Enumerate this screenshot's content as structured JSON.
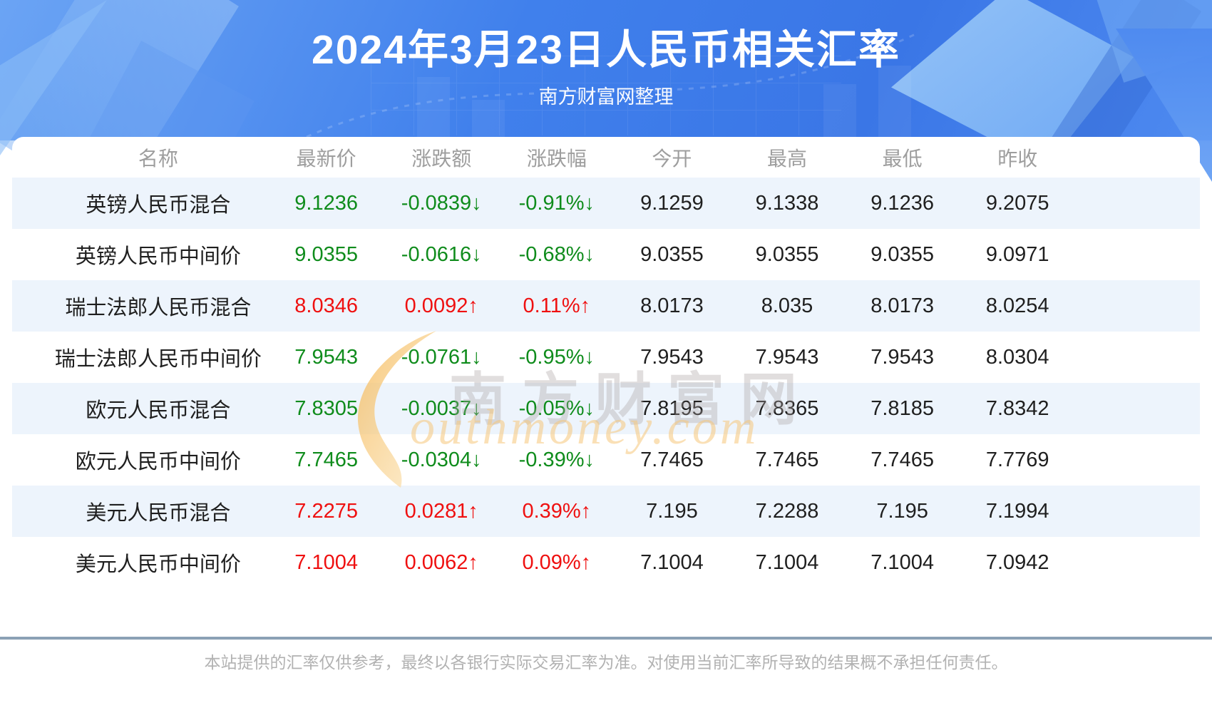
{
  "banner": {
    "title": "2024年3月23日人民币相关汇率",
    "subtitle": "南方财富网整理"
  },
  "table": {
    "headers": [
      "名称",
      "最新价",
      "涨跌额",
      "涨跌幅",
      "今开",
      "最高",
      "最低",
      "昨收"
    ],
    "rows": [
      {
        "name": "英镑人民币混合",
        "last": "9.1236",
        "change": "-0.0839↓",
        "pct": "-0.91%↓",
        "open": "9.1259",
        "high": "9.1338",
        "low": "9.1236",
        "prev": "9.2075",
        "dir": "down"
      },
      {
        "name": "英镑人民币中间价",
        "last": "9.0355",
        "change": "-0.0616↓",
        "pct": "-0.68%↓",
        "open": "9.0355",
        "high": "9.0355",
        "low": "9.0355",
        "prev": "9.0971",
        "dir": "down"
      },
      {
        "name": "瑞士法郎人民币混合",
        "last": "8.0346",
        "change": "0.0092↑",
        "pct": "0.11%↑",
        "open": "8.0173",
        "high": "8.035",
        "low": "8.0173",
        "prev": "8.0254",
        "dir": "up"
      },
      {
        "name": "瑞士法郎人民币中间价",
        "last": "7.9543",
        "change": "-0.0761↓",
        "pct": "-0.95%↓",
        "open": "7.9543",
        "high": "7.9543",
        "low": "7.9543",
        "prev": "8.0304",
        "dir": "down"
      },
      {
        "name": "欧元人民币混合",
        "last": "7.8305",
        "change": "-0.0037↓",
        "pct": "-0.05%↓",
        "open": "7.8195",
        "high": "7.8365",
        "low": "7.8185",
        "prev": "7.8342",
        "dir": "down"
      },
      {
        "name": "欧元人民币中间价",
        "last": "7.7465",
        "change": "-0.0304↓",
        "pct": "-0.39%↓",
        "open": "7.7465",
        "high": "7.7465",
        "low": "7.7465",
        "prev": "7.7769",
        "dir": "down"
      },
      {
        "name": "美元人民币混合",
        "last": "7.2275",
        "change": "0.0281↑",
        "pct": "0.39%↑",
        "open": "7.195",
        "high": "7.2288",
        "low": "7.195",
        "prev": "7.1994",
        "dir": "up"
      },
      {
        "name": "美元人民币中间价",
        "last": "7.1004",
        "change": "0.0062↑",
        "pct": "0.09%↑",
        "open": "7.1004",
        "high": "7.1004",
        "low": "7.1004",
        "prev": "7.0942",
        "dir": "up"
      }
    ]
  },
  "watermark": {
    "brand_cn": "南方财富网",
    "brand_en": "outhmoney.com"
  },
  "footer": {
    "disclaimer": "本站提供的汇率仅供参考，最终以各银行实际交易汇率为准。对使用当前汇率所导致的结果概不承担任何责任。"
  },
  "colors": {
    "up": "#ef1010",
    "down": "#0f8c1c",
    "stripe": "#edf4fc",
    "divider": "#8ba1b5",
    "header_text": "#9e9e9e",
    "body_text": "#1f1f1f",
    "footer_text": "#b2b2b2",
    "banner_blue": "#4080ec"
  },
  "chart_data": {
    "type": "table",
    "title": "2024年3月23日人民币相关汇率",
    "subtitle": "南方财富网整理",
    "columns": [
      "名称",
      "最新价",
      "涨跌额",
      "涨跌幅",
      "今开",
      "最高",
      "最低",
      "昨收"
    ],
    "rows": [
      [
        "英镑人民币混合",
        9.1236,
        -0.0839,
        "-0.91%",
        9.1259,
        9.1338,
        9.1236,
        9.2075
      ],
      [
        "英镑人民币中间价",
        9.0355,
        -0.0616,
        "-0.68%",
        9.0355,
        9.0355,
        9.0355,
        9.0971
      ],
      [
        "瑞士法郎人民币混合",
        8.0346,
        0.0092,
        "0.11%",
        8.0173,
        8.035,
        8.0173,
        8.0254
      ],
      [
        "瑞士法郎人民币中间价",
        7.9543,
        -0.0761,
        "-0.95%",
        7.9543,
        7.9543,
        7.9543,
        8.0304
      ],
      [
        "欧元人民币混合",
        7.8305,
        -0.0037,
        "-0.05%",
        7.8195,
        7.8365,
        7.8185,
        7.8342
      ],
      [
        "欧元人民币中间价",
        7.7465,
        -0.0304,
        "-0.39%",
        7.7465,
        7.7465,
        7.7465,
        7.7769
      ],
      [
        "美元人民币混合",
        7.2275,
        0.0281,
        "0.39%",
        7.195,
        7.2288,
        7.195,
        7.1994
      ],
      [
        "美元人民币中间价",
        7.1004,
        0.0062,
        "0.09%",
        7.1004,
        7.1004,
        7.1004,
        7.0942
      ]
    ]
  }
}
